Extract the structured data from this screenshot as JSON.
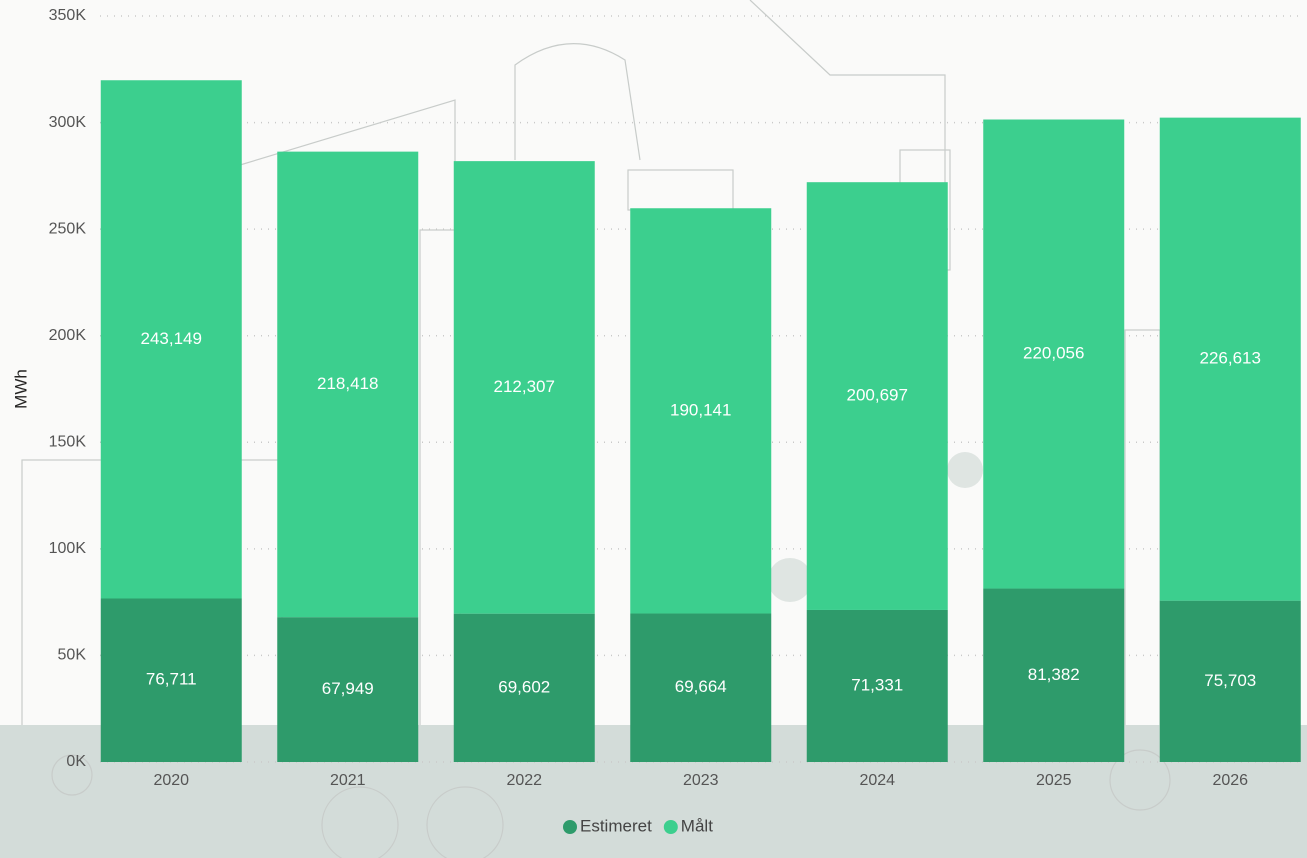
{
  "chart_data": {
    "type": "stacked_bar",
    "y_label": "MWh",
    "categories": [
      "2020",
      "2021",
      "2022",
      "2023",
      "2024",
      "2025",
      "2026"
    ],
    "series": [
      {
        "name": "Estimeret",
        "color": "#2e9b6b",
        "values": [
          76711,
          67949,
          69602,
          69664,
          71331,
          81382,
          75703
        ],
        "value_labels": [
          "76,711",
          "67,949",
          "69,602",
          "69,664",
          "71,331",
          "81,382",
          "75,703"
        ]
      },
      {
        "name": "Målt",
        "color": "#3ccf8e",
        "values": [
          243149,
          218418,
          212307,
          190141,
          200697,
          220056,
          226613
        ],
        "value_labels": [
          "243,149",
          "218,418",
          "212,307",
          "190,141",
          "200,697",
          "220,056",
          "226,613"
        ]
      }
    ],
    "ylim": [
      0,
      350000
    ],
    "yticks": [
      {
        "value": 0,
        "label": "0K"
      },
      {
        "value": 50000,
        "label": "50K"
      },
      {
        "value": 100000,
        "label": "100K"
      },
      {
        "value": 150000,
        "label": "150K"
      },
      {
        "value": 200000,
        "label": "200K"
      },
      {
        "value": 250000,
        "label": "250K"
      },
      {
        "value": 300000,
        "label": "300K"
      },
      {
        "value": 350000,
        "label": "350K"
      }
    ],
    "grid": true,
    "legend": "bottom"
  }
}
